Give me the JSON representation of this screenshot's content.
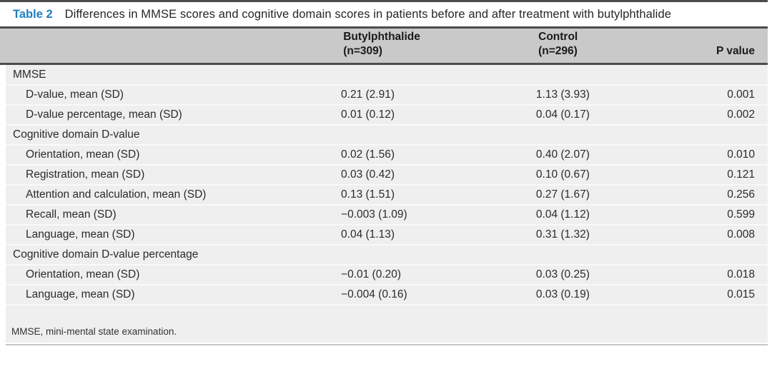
{
  "colors": {
    "accent_blue": "#1e7ec2",
    "header_bg": "#c9c9c9",
    "body_bg": "#efefef",
    "rule_dark": "#4c4c4c",
    "rule_light": "#c6c6c6"
  },
  "title": {
    "label": "Table 2",
    "text": "Differences in MMSE scores and cognitive domain scores in patients before and after treatment with butylphthalide"
  },
  "header": {
    "group_treatment": {
      "name": "Butylphthalide",
      "n": "(n=309)"
    },
    "group_control": {
      "name": "Control",
      "n": "(n=296)"
    },
    "p_label": "P value"
  },
  "table": {
    "rows": [
      {
        "type": "section",
        "label": "MMSE"
      },
      {
        "type": "data",
        "label": "D-value, mean (SD)",
        "butylphthalide": "0.21 (2.91)",
        "control": "1.13 (3.93)",
        "p": "0.001"
      },
      {
        "type": "data",
        "label": "D-value percentage, mean (SD)",
        "butylphthalide": "0.01 (0.12)",
        "control": "0.04 (0.17)",
        "p": "0.002"
      },
      {
        "type": "section",
        "label": "Cognitive domain D-value"
      },
      {
        "type": "data",
        "label": "Orientation, mean (SD)",
        "butylphthalide": "0.02 (1.56)",
        "control": "0.40 (2.07)",
        "p": "0.010"
      },
      {
        "type": "data",
        "label": "Registration, mean (SD)",
        "butylphthalide": "0.03 (0.42)",
        "control": "0.10 (0.67)",
        "p": "0.121"
      },
      {
        "type": "data",
        "label": "Attention and calculation, mean (SD)",
        "butylphthalide": "0.13 (1.51)",
        "control": "0.27 (1.67)",
        "p": "0.256"
      },
      {
        "type": "data",
        "label": "Recall, mean (SD)",
        "butylphthalide": "−0.003 (1.09)",
        "control": "0.04 (1.12)",
        "p": "0.599"
      },
      {
        "type": "data",
        "label": "Language, mean (SD)",
        "butylphthalide": "0.04 (1.13)",
        "control": "0.31 (1.32)",
        "p": "0.008"
      },
      {
        "type": "section",
        "label": "Cognitive domain D-value percentage"
      },
      {
        "type": "data",
        "label": "Orientation, mean (SD)",
        "butylphthalide": "−0.01 (0.20)",
        "control": "0.03 (0.25)",
        "p": "0.018"
      },
      {
        "type": "data",
        "label": "Language, mean (SD)",
        "butylphthalide": "−0.004 (0.16)",
        "control": "0.03 (0.19)",
        "p": "0.015"
      }
    ]
  },
  "footnote": "MMSE, mini-mental state examination."
}
